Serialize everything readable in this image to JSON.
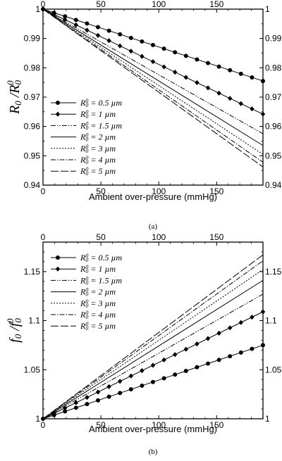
{
  "chart_data": [
    {
      "type": "line",
      "panel_label": "(a)",
      "xlabel": "Ambient over-pressure (mmHg)",
      "ylabel": {
        "main": "R",
        "sub": "0",
        "sep": " /",
        "main2": "R",
        "sub2": "0",
        "sup2": "0"
      },
      "xlim": [
        0,
        190
      ],
      "ylim": [
        0.94,
        1.0
      ],
      "xticks": [
        0,
        50,
        100,
        150
      ],
      "yticks": [
        "0.94",
        "0.95",
        "0.96",
        "0.97",
        "0.98",
        "0.99",
        "1"
      ],
      "legend_position": "lower-left",
      "series": [
        {
          "name": "R0 = 0.5 µm",
          "label_value": "= 0.5 µm",
          "style": "solid",
          "marker": "circle",
          "x": [
            0,
            190
          ],
          "y": [
            1.0,
            0.9755
          ]
        },
        {
          "name": "R0 = 1 µm",
          "label_value": "= 1 µm",
          "style": "solid",
          "marker": "diamond",
          "x": [
            0,
            190
          ],
          "y": [
            1.0,
            0.9642
          ]
        },
        {
          "name": "R0 = 1.5 µm",
          "label_value": "= 1.5 µm",
          "style": "dashdotdot",
          "x": [
            0,
            190
          ],
          "y": [
            1.0,
            0.9575
          ]
        },
        {
          "name": "R0 = 2 µm",
          "label_value": "= 2 µm",
          "style": "solid",
          "x": [
            0,
            190
          ],
          "y": [
            1.0,
            0.9535
          ]
        },
        {
          "name": "R0 = 3 µm",
          "label_value": "= 3 µm",
          "style": "dotted",
          "x": [
            0,
            190
          ],
          "y": [
            1.0,
            0.9505
          ]
        },
        {
          "name": "R0 = 4 µm",
          "label_value": "= 4 µm",
          "style": "dashdot",
          "x": [
            0,
            190
          ],
          "y": [
            1.0,
            0.9478
          ]
        },
        {
          "name": "R0 = 5 µm",
          "label_value": "= 5 µm",
          "style": "longdash",
          "x": [
            0,
            190
          ],
          "y": [
            1.0,
            0.9462
          ]
        }
      ]
    },
    {
      "type": "line",
      "panel_label": "(b)",
      "xlabel": "Ambient over-pressure (mmHg)",
      "ylabel": {
        "main": "f",
        "sub": "0",
        "sep": " /",
        "main2": "f",
        "sub2": "0",
        "sup2": "0"
      },
      "xlim": [
        0,
        190
      ],
      "ylim": [
        1.0,
        1.18
      ],
      "xticks": [
        0,
        50,
        100,
        150
      ],
      "yticks": [
        "1",
        "1.05",
        "1.1",
        "1.15"
      ],
      "legend_position": "top-left",
      "series": [
        {
          "name": "R0 = 0.5 µm",
          "label_value": "= 0.5 µm",
          "style": "solid",
          "marker": "circle",
          "x": [
            0,
            190
          ],
          "y": [
            1.0,
            1.075
          ]
        },
        {
          "name": "R0 = 1 µm",
          "label_value": "= 1 µm",
          "style": "solid",
          "marker": "diamond",
          "x": [
            0,
            190
          ],
          "y": [
            1.0,
            1.109
          ]
        },
        {
          "name": "R0 = 1.5 µm",
          "label_value": "= 1.5 µm",
          "style": "dashdotdot",
          "x": [
            0,
            190
          ],
          "y": [
            1.0,
            1.127
          ]
        },
        {
          "name": "R0 = 2 µm",
          "label_value": "= 2 µm",
          "style": "solid",
          "x": [
            0,
            190
          ],
          "y": [
            1.0,
            1.141
          ]
        },
        {
          "name": "R0 = 3 µm",
          "label_value": "= 3 µm",
          "style": "dotted",
          "x": [
            0,
            190
          ],
          "y": [
            1.0,
            1.152
          ]
        },
        {
          "name": "R0 = 4 µm",
          "label_value": "= 4 µm",
          "style": "dashdot",
          "x": [
            0,
            190
          ],
          "y": [
            1.0,
            1.161
          ]
        },
        {
          "name": "R0 = 5 µm",
          "label_value": "= 5 µm",
          "style": "longdash",
          "x": [
            0,
            190
          ],
          "y": [
            1.0,
            1.167
          ]
        }
      ]
    }
  ],
  "legend_symbol": {
    "main": "R",
    "sub": "0",
    "sup": "0"
  }
}
